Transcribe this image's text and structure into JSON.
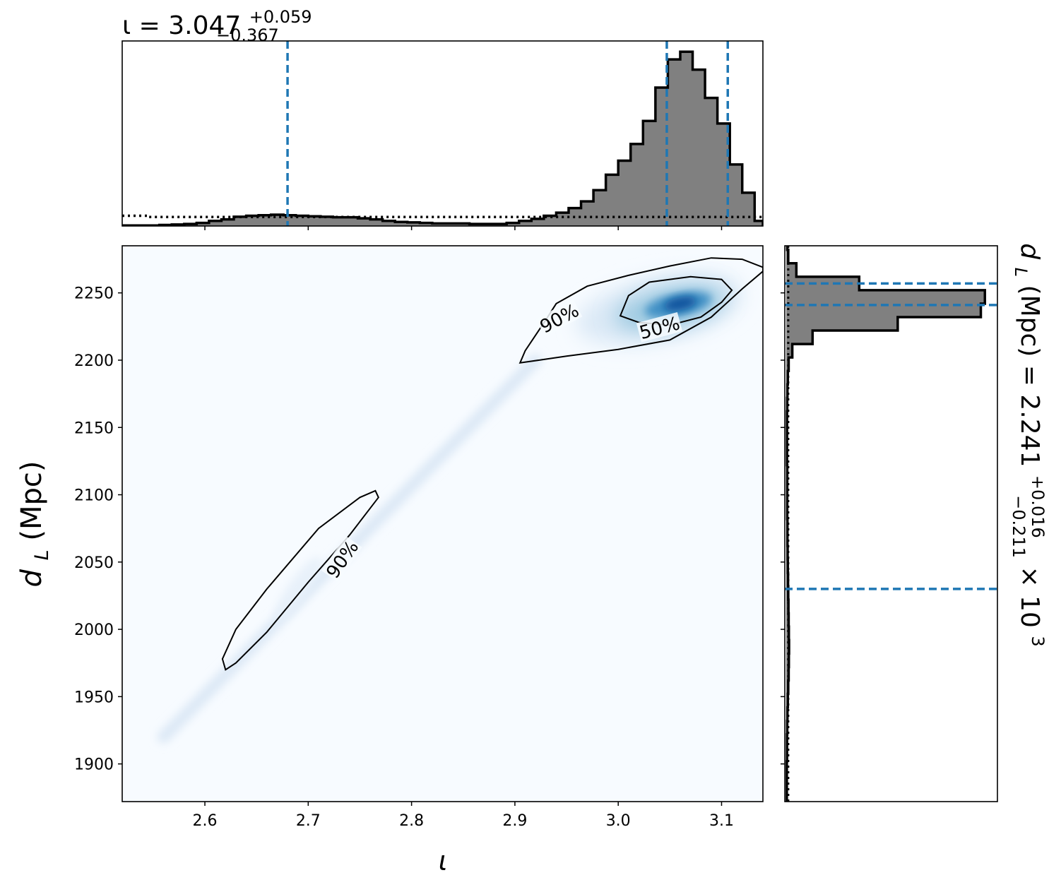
{
  "colors": {
    "hist_fill": "#808080",
    "hist_edge": "#000000",
    "quantile_line": "#1f77b4",
    "density_low": "#f7fbff",
    "density_high": "#08306b",
    "contour": "#000000"
  },
  "chart_data": [
    {
      "id": "top_marginal",
      "type": "histogram",
      "variable": "ι",
      "title": {
        "prefix": "ι = 3.047",
        "sup": "+0.059",
        "sub": "−0.367"
      },
      "xlim": [
        2.52,
        3.14
      ],
      "xticks": [
        2.6,
        2.7,
        2.8,
        2.9,
        3.0,
        3.1
      ],
      "bin_edges": [
        2.52,
        2.532,
        2.544,
        2.556,
        2.568,
        2.58,
        2.592,
        2.604,
        2.616,
        2.628,
        2.64,
        2.652,
        2.664,
        2.676,
        2.688,
        2.7,
        2.712,
        2.724,
        2.736,
        2.748,
        2.76,
        2.772,
        2.784,
        2.796,
        2.808,
        2.82,
        2.832,
        2.844,
        2.856,
        2.868,
        2.88,
        2.892,
        2.904,
        2.916,
        2.928,
        2.94,
        2.952,
        2.964,
        2.976,
        2.988,
        3.0,
        3.012,
        3.024,
        3.036,
        3.048,
        3.06,
        3.072,
        3.084,
        3.096,
        3.108,
        3.12,
        3.132,
        3.14
      ],
      "counts": [
        0.2,
        0.2,
        0.2,
        0.4,
        0.6,
        0.8,
        1.2,
        2.0,
        2.6,
        3.6,
        4.0,
        4.2,
        4.4,
        4.2,
        4.0,
        3.8,
        3.6,
        3.4,
        3.4,
        3.0,
        2.6,
        2.0,
        1.6,
        1.4,
        1.2,
        1.0,
        1.0,
        1.0,
        0.8,
        0.8,
        0.8,
        1.2,
        2.0,
        2.8,
        4.0,
        5.2,
        7.0,
        9.6,
        14,
        20,
        25.5,
        32,
        41,
        54,
        65,
        68,
        61,
        50,
        40,
        24,
        13,
        2
      ],
      "dotted_counts": [
        4,
        4,
        3.5,
        3.5,
        3.5,
        3.5,
        3.5,
        3.5,
        3.5,
        3.5,
        3.5,
        3.5,
        3.5,
        3.5,
        3.5,
        3.5,
        3.5,
        3.5,
        3.5,
        3.5,
        3.5,
        3.5,
        3.5,
        3.5,
        3.5,
        3.5,
        3.5,
        3.5,
        3.5,
        3.5,
        3.5,
        3.5,
        3.5,
        3.5,
        3.5,
        3.5,
        3.5,
        3.5,
        3.5,
        3.5,
        3.5,
        3.5,
        3.5,
        3.5,
        3.5,
        3.5,
        3.5,
        3.5,
        3.5,
        3.5,
        3.5,
        3.5
      ],
      "ymax": 70,
      "quantile_lines": [
        2.68,
        3.047,
        3.106
      ]
    },
    {
      "id": "joint_density",
      "type": "heatmap",
      "xlim": [
        2.52,
        3.14
      ],
      "ylim": [
        1872,
        2285
      ],
      "xticks": [
        2.6,
        2.7,
        2.8,
        2.9,
        3.0,
        3.1
      ],
      "yticks": [
        1900,
        1950,
        2000,
        2050,
        2100,
        2150,
        2200,
        2250
      ],
      "xlabel": "ι",
      "ylabel": "d",
      "ylabel_sub": "L",
      "ylabel_unit": " (Mpc)",
      "contours": [
        {
          "label": "90%",
          "label_at": [
            2.943,
            2231
          ],
          "label_angle": -28,
          "points": [
            [
              2.905,
              2198
            ],
            [
              2.95,
              2203
            ],
            [
              3.0,
              2208
            ],
            [
              3.05,
              2215
            ],
            [
              3.09,
              2232
            ],
            [
              3.12,
              2253
            ],
            [
              3.14,
              2266
            ],
            [
              3.14,
              2269
            ],
            [
              3.12,
              2275
            ],
            [
              3.09,
              2276
            ],
            [
              3.05,
              2270
            ],
            [
              3.01,
              2263
            ],
            [
              2.97,
              2255
            ],
            [
              2.94,
              2242
            ],
            [
              2.93,
              2230
            ],
            [
              2.91,
              2207
            ],
            [
              2.905,
              2198
            ]
          ]
        },
        {
          "label": "50%",
          "label_at": [
            3.04,
            2224
          ],
          "label_angle": -15,
          "points": [
            [
              3.02,
              2228
            ],
            [
              3.05,
              2226
            ],
            [
              3.08,
              2232
            ],
            [
              3.1,
              2243
            ],
            [
              3.11,
              2252
            ],
            [
              3.1,
              2260
            ],
            [
              3.07,
              2262
            ],
            [
              3.03,
              2258
            ],
            [
              3.01,
              2248
            ],
            [
              3.002,
              2233
            ],
            [
              3.02,
              2228
            ]
          ]
        },
        {
          "label": "90%",
          "label_at": [
            2.733,
            2052
          ],
          "label_angle": -55,
          "points": [
            [
              2.62,
              1970
            ],
            [
              2.617,
              1978
            ],
            [
              2.63,
              2000
            ],
            [
              2.66,
              2030
            ],
            [
              2.71,
              2075
            ],
            [
              2.75,
              2098
            ],
            [
              2.765,
              2103
            ],
            [
              2.768,
              2098
            ],
            [
              2.74,
              2070
            ],
            [
              2.7,
              2035
            ],
            [
              2.66,
              1998
            ],
            [
              2.63,
              1975
            ],
            [
              2.62,
              1970
            ]
          ]
        }
      ]
    },
    {
      "id": "right_marginal",
      "type": "histogram",
      "orientation": "horizontal",
      "variable": "d_L",
      "title": {
        "prefix_italic": "d",
        "prefix_sub": "L",
        "rest": " (Mpc) = 2.241",
        "sup": "+0.016",
        "sub": "−0.211",
        "suffix": " × 10",
        "suffix_sup": "3"
      },
      "ylim": [
        1872,
        2285
      ],
      "yticks": [
        1900,
        1950,
        2000,
        2050,
        2100,
        2150,
        2200,
        2250
      ],
      "bin_edges": [
        1872,
        1882,
        1892,
        1902,
        1912,
        1922,
        1932,
        1942,
        1952,
        1962,
        1972,
        1982,
        1992,
        2002,
        2012,
        2022,
        2032,
        2042,
        2052,
        2062,
        2072,
        2082,
        2092,
        2102,
        2112,
        2122,
        2132,
        2142,
        2152,
        2162,
        2172,
        2182,
        2192,
        2202,
        2212,
        2222,
        2232,
        2242,
        2252,
        2262,
        2272,
        2282,
        2285
      ],
      "counts": [
        0.3,
        0.3,
        0.3,
        0.4,
        0.4,
        0.5,
        0.6,
        0.8,
        1.0,
        1.2,
        1.3,
        1.4,
        1.3,
        1.2,
        1.1,
        1.0,
        0.9,
        0.8,
        0.7,
        0.6,
        0.6,
        0.5,
        0.5,
        0.5,
        0.5,
        0.4,
        0.4,
        0.4,
        0.4,
        0.5,
        0.6,
        0.8,
        1.2,
        3,
        13,
        55,
        96,
        98,
        36,
        5,
        1,
        0.5
      ],
      "dotted_counts": [
        1,
        1,
        1,
        1,
        1,
        1,
        1,
        1,
        1,
        1,
        1,
        1,
        1,
        1,
        1,
        1,
        1,
        1,
        1,
        1,
        1,
        1,
        1,
        1,
        1,
        1,
        1,
        1,
        1,
        1,
        1,
        1,
        1,
        1,
        1,
        1,
        1,
        1,
        1,
        1,
        1,
        1
      ],
      "xmax": 100,
      "quantile_lines": [
        2030,
        2241,
        2257
      ]
    }
  ]
}
